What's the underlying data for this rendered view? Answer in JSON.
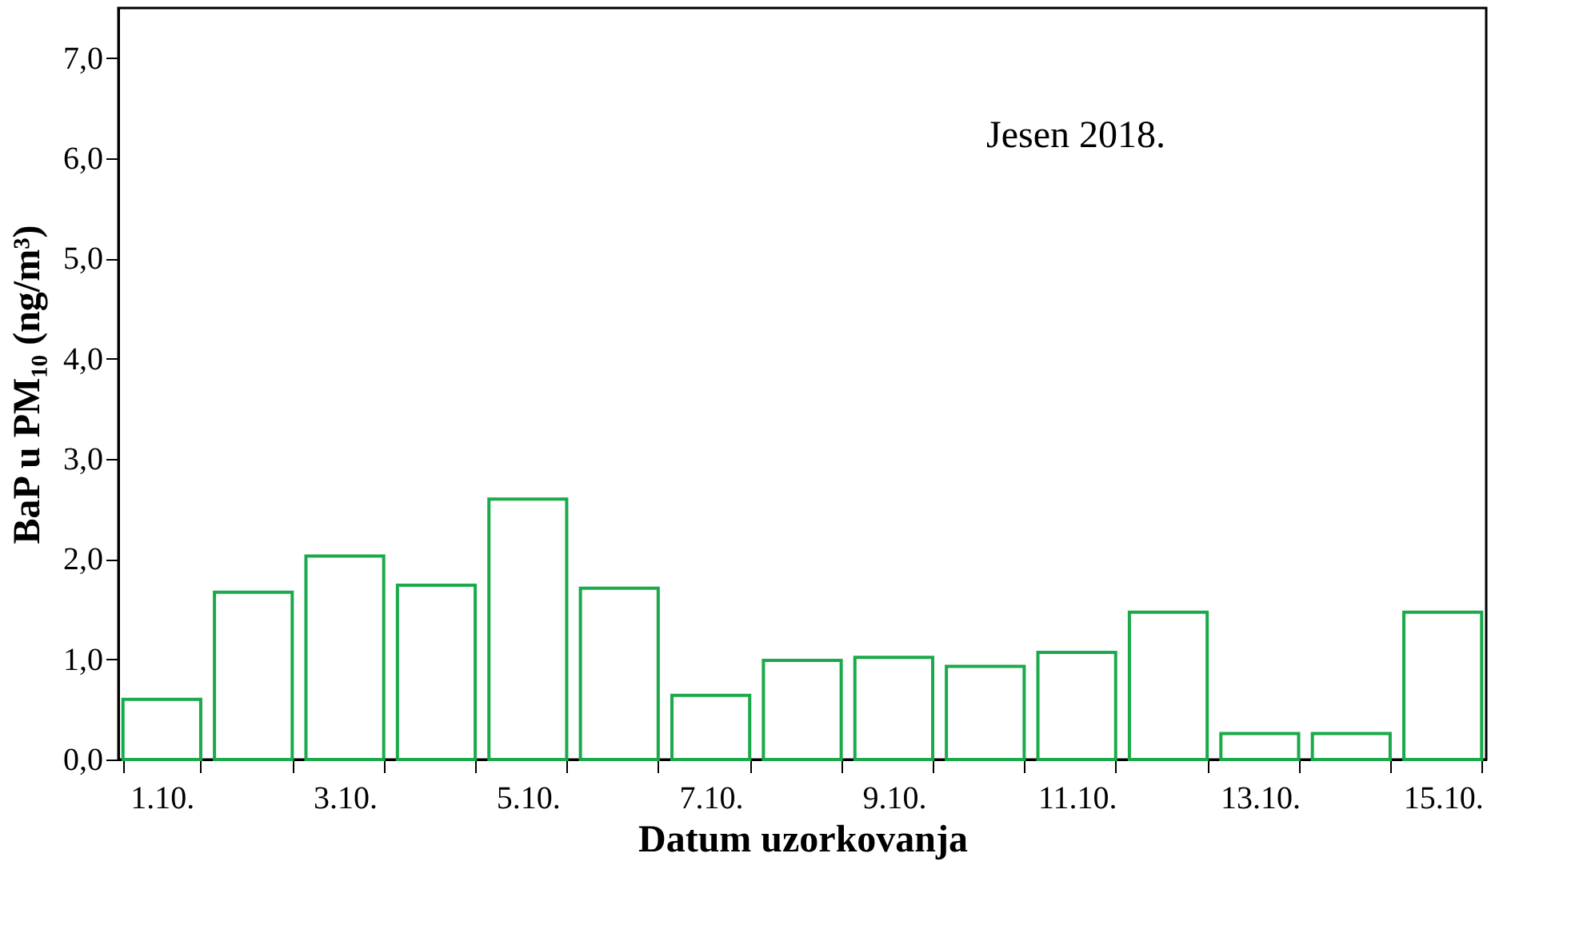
{
  "chart_data": {
    "type": "bar",
    "categories": [
      "1.10.",
      null,
      "3.10.",
      null,
      "5.10.",
      null,
      "7.10.",
      null,
      "9.10.",
      null,
      "11.10.",
      null,
      "13.10.",
      null,
      "15.10."
    ],
    "values": [
      0.6,
      1.67,
      2.03,
      1.74,
      2.6,
      1.71,
      0.64,
      0.99,
      1.02,
      0.93,
      1.07,
      1.47,
      0.26,
      0.26,
      1.47
    ],
    "color": "#1aaa4a",
    "xlabel": "Datum uzorkovanja",
    "ylabel": "BaP u PM₁₀ (ng/m³)",
    "ylim": [
      0,
      7.5
    ],
    "yticks": [
      {
        "value": 0,
        "label": "0,0"
      },
      {
        "value": 1,
        "label": "1,0"
      },
      {
        "value": 2,
        "label": "2,0"
      },
      {
        "value": 3,
        "label": "3,0"
      },
      {
        "value": 4,
        "label": "4,0"
      },
      {
        "value": 5,
        "label": "5,0"
      },
      {
        "value": 6,
        "label": "6,0"
      },
      {
        "value": 7,
        "label": "7,0"
      }
    ],
    "annotations": [
      "Jesen 2018."
    ],
    "grid": false
  }
}
